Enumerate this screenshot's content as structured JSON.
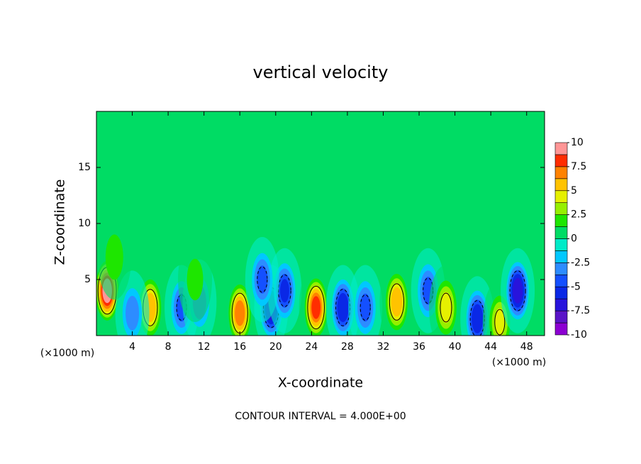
{
  "chart_data": {
    "type": "contour",
    "title": "vertical velocity",
    "x_label": "X-coordinate",
    "y_label": "Z-coordinate",
    "x_unit_label": "(×1000 m)",
    "footnote": "CONTOUR INTERVAL = 4.000E+00",
    "xlim": [
      0,
      50
    ],
    "ylim": [
      0,
      20
    ],
    "xticks": [
      4,
      8,
      12,
      16,
      20,
      24,
      28,
      32,
      36,
      40,
      44,
      48
    ],
    "yticks": [
      5,
      10,
      15
    ],
    "clim": [
      -10,
      10
    ],
    "colorbar_ticks": [
      10,
      7.5,
      5,
      2.5,
      0,
      -2.5,
      -5,
      -7.5,
      -10
    ],
    "colors": [
      "#8c00d2",
      "#5a14c8",
      "#2814dc",
      "#0a28e6",
      "#1450ff",
      "#2d8cff",
      "#00c8ff",
      "#00ebc8",
      "#00dc64",
      "#1ee600",
      "#96ef00",
      "#e6f000",
      "#ffc300",
      "#ff8200",
      "#ff2d00",
      "#ff9696"
    ],
    "features": {
      "x": [
        1.2,
        6,
        4,
        9.5,
        11.5,
        16,
        19.5,
        21,
        18.5,
        24.5,
        27.5,
        30,
        33.5,
        37,
        39,
        42.5,
        45,
        47,
        2,
        11
      ],
      "z": [
        4,
        2.5,
        2,
        2.5,
        3,
        2,
        2.5,
        4,
        5,
        2.5,
        2.5,
        2.5,
        3,
        4,
        2.5,
        1.5,
        1.2,
        4,
        7,
        5
      ],
      "values": [
        10,
        6,
        -3,
        -4,
        -3,
        7,
        -7,
        -5,
        -4,
        8,
        -6,
        -4,
        6,
        -4,
        4.5,
        -6,
        4,
        -7,
        2,
        1.5
      ]
    }
  }
}
